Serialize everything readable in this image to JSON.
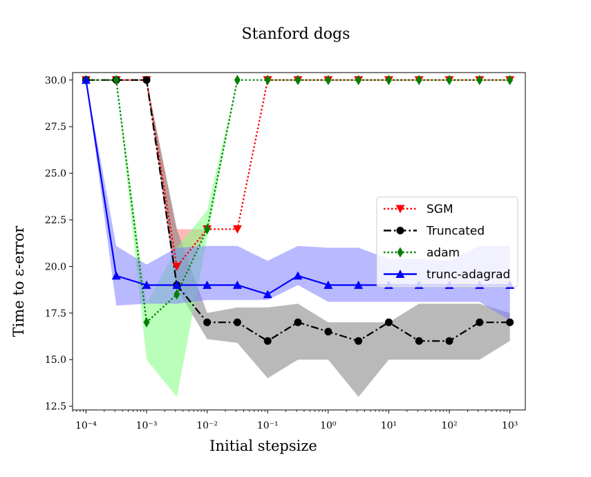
{
  "chart_data": {
    "type": "line",
    "title": "Stanford dogs",
    "xlabel": "Initial stepsize",
    "ylabel": "Time to ε-error",
    "xscale": "log",
    "xlim": [
      6e-05,
      1800
    ],
    "ylim": [
      12.3,
      30.4
    ],
    "x_ticks": [
      {
        "value": 0.0001,
        "label": "10⁻⁴"
      },
      {
        "value": 0.001,
        "label": "10⁻³"
      },
      {
        "value": 0.01,
        "label": "10⁻²"
      },
      {
        "value": 0.1,
        "label": "10⁻¹"
      },
      {
        "value": 1,
        "label": "10⁰"
      },
      {
        "value": 10,
        "label": "10¹"
      },
      {
        "value": 100,
        "label": "10²"
      },
      {
        "value": 1000,
        "label": "10³"
      }
    ],
    "y_ticks": [
      {
        "value": 12.5,
        "label": "12.5"
      },
      {
        "value": 15.0,
        "label": "15.0"
      },
      {
        "value": 17.5,
        "label": "17.5"
      },
      {
        "value": 20.0,
        "label": "20.0"
      },
      {
        "value": 22.5,
        "label": "22.5"
      },
      {
        "value": 25.0,
        "label": "25.0"
      },
      {
        "value": 27.5,
        "label": "27.5"
      },
      {
        "value": 30.0,
        "label": "30.0"
      }
    ],
    "x": [
      0.0001,
      0.000316,
      0.001,
      0.00316,
      0.01,
      0.0316,
      0.1,
      0.316,
      1,
      3.16,
      10,
      31.6,
      100,
      316,
      1000
    ],
    "legend_position": "center-right",
    "grid": false,
    "series": [
      {
        "name": "SGM",
        "color": "#ff0000",
        "line_style": "dotted",
        "marker": "triangle-down",
        "values": [
          30,
          30,
          30,
          20,
          22,
          22,
          30,
          30,
          30,
          30,
          30,
          30,
          30,
          30,
          30
        ],
        "band_lower": [
          30,
          30,
          30,
          18.5,
          22,
          22,
          30,
          30,
          30,
          30,
          30,
          30,
          30,
          30,
          30
        ],
        "band_upper": [
          30,
          30,
          30,
          22,
          22,
          22,
          30,
          30,
          30,
          30,
          30,
          30,
          30,
          30,
          30
        ]
      },
      {
        "name": "Truncated",
        "color": "#000000",
        "line_style": "dashdot",
        "marker": "circle",
        "values": [
          30,
          30,
          30,
          19,
          17,
          17,
          16,
          17,
          16.5,
          16,
          17,
          16,
          16,
          17,
          17
        ],
        "band_lower": [
          30,
          30,
          30,
          18.8,
          16.1,
          15.9,
          14,
          15,
          15,
          13,
          15,
          15,
          15,
          15,
          16
        ],
        "band_upper": [
          30,
          30,
          30,
          22,
          17.5,
          17.8,
          17.8,
          18,
          17,
          17,
          17,
          18,
          18,
          18,
          17.5
        ]
      },
      {
        "name": "adam",
        "color": "#008000",
        "line_style": "dotted",
        "marker": "diamond",
        "values": [
          30,
          30,
          17,
          18.5,
          22,
          30,
          30,
          30,
          30,
          30,
          30,
          30,
          30,
          30,
          30
        ],
        "band_lower": [
          30,
          30,
          15,
          13,
          21.5,
          30,
          30,
          30,
          30,
          30,
          30,
          30,
          30,
          30,
          30
        ],
        "band_upper": [
          30,
          30,
          18,
          21,
          23,
          30,
          30,
          30,
          30,
          30,
          30,
          30,
          30,
          30,
          30
        ]
      },
      {
        "name": "trunc-adagrad",
        "color": "#0000ff",
        "line_style": "solid",
        "marker": "triangle-up",
        "values": [
          30,
          19.5,
          19,
          19,
          19,
          19,
          18.5,
          19.5,
          19,
          19,
          19,
          19,
          19,
          19,
          19
        ],
        "band_lower": [
          30,
          17.9,
          18,
          18,
          18.2,
          18.2,
          18.2,
          19,
          18.1,
          18.1,
          18.1,
          18.1,
          18.1,
          18.1,
          17.1
        ],
        "band_upper": [
          30,
          21.1,
          20.1,
          21,
          21.1,
          21.1,
          20.3,
          21.1,
          21,
          21,
          20.4,
          20.4,
          20.3,
          21.1,
          21.1
        ]
      }
    ]
  }
}
